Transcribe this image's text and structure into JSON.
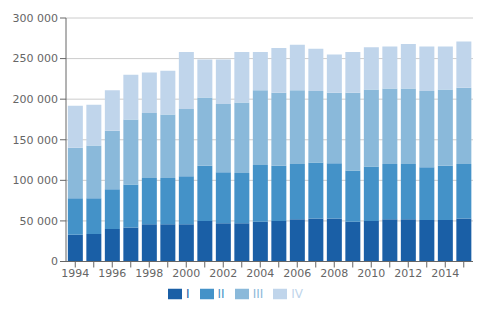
{
  "chart_data": {
    "type": "bar",
    "stacked": true,
    "grid": true,
    "legend": "bottom",
    "categories": [
      "1994",
      null,
      "1996",
      null,
      "1998",
      null,
      "2000",
      null,
      "2002",
      null,
      "2004",
      null,
      "2006",
      null,
      "2008",
      null,
      "2010",
      null,
      "2012",
      null,
      "2014",
      null
    ],
    "series": [
      {
        "name": "I",
        "color": "#1a5fa6",
        "values": [
          33000,
          34000,
          40000,
          42000,
          46000,
          46000,
          46000,
          50000,
          47000,
          47000,
          49000,
          50000,
          52000,
          53000,
          53000,
          49000,
          50000,
          52000,
          52000,
          51000,
          51000,
          53000
        ]
      },
      {
        "name": "II",
        "color": "#4492c8",
        "values": [
          45000,
          44000,
          49000,
          53000,
          57000,
          57000,
          59000,
          68000,
          63000,
          62000,
          70000,
          68000,
          68000,
          69000,
          68000,
          63000,
          67000,
          68000,
          68000,
          65000,
          67000,
          67000
        ]
      },
      {
        "name": "III",
        "color": "#8ab9da",
        "values": [
          62000,
          65000,
          72000,
          80000,
          80000,
          78000,
          83000,
          84000,
          84000,
          87000,
          92000,
          90000,
          91000,
          88000,
          87000,
          96000,
          95000,
          93000,
          93000,
          94000,
          94000,
          94000
        ]
      },
      {
        "name": "IV",
        "color": "#c0d5eb",
        "values": [
          52000,
          50000,
          50000,
          55000,
          50000,
          54000,
          70000,
          47000,
          55000,
          62000,
          47000,
          55000,
          56000,
          52000,
          47000,
          50000,
          52000,
          52000,
          55000,
          55000,
          53000,
          57000
        ]
      }
    ],
    "ylim": [
      0,
      300000
    ],
    "yticks": [
      0,
      {
        "value": 50000,
        "label": "50 000"
      },
      {
        "value": 100000,
        "label": "100 000"
      },
      {
        "value": 150000,
        "label": "150 000"
      },
      {
        "value": 200000,
        "label": "200 000"
      },
      {
        "value": 250000,
        "label": "250 000"
      },
      {
        "value": 300000,
        "label": "300 000"
      }
    ]
  }
}
